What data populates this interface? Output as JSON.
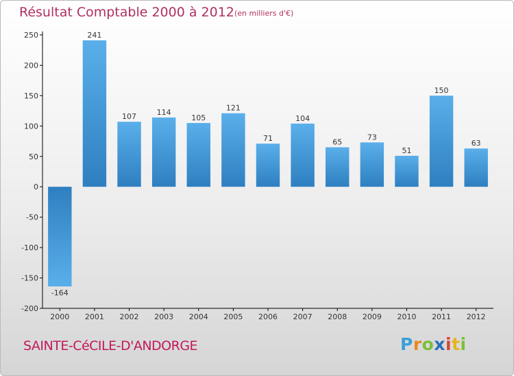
{
  "page": {
    "title": "Résultat Comptable 2000 à 2012",
    "subtitle": "(en milliers d'€)",
    "commune": "SAINTE-CéCILE-D'ANDORGE",
    "logo": {
      "p": "P",
      "r": "r",
      "o": "o",
      "x": "x",
      "i1": "i",
      "t": "t",
      "i2": "i"
    }
  },
  "chart_data": {
    "type": "bar",
    "title": "Résultat Comptable 2000 à 2012",
    "subtitle": "(en milliers d'€)",
    "xlabel": "",
    "ylabel": "",
    "categories": [
      "2000",
      "2001",
      "2002",
      "2003",
      "2004",
      "2005",
      "2006",
      "2007",
      "2008",
      "2009",
      "2010",
      "2011",
      "2012"
    ],
    "values": [
      -164,
      241,
      107,
      114,
      105,
      121,
      71,
      104,
      65,
      73,
      51,
      150,
      63
    ],
    "value_labels": [
      "-164",
      "241",
      "107",
      "114",
      "105",
      "121",
      "71",
      "104",
      "65",
      "73",
      "51",
      "150",
      "63"
    ],
    "ylim": [
      -200,
      250
    ],
    "yticks": [
      250,
      200,
      150,
      100,
      50,
      0,
      -50,
      -100,
      -150,
      -200
    ],
    "ytick_labels": [
      "250",
      "200",
      "150",
      "100",
      "50",
      "0",
      "-50",
      "-100",
      "-150",
      "-200"
    ],
    "grid": false,
    "colors": {
      "bar_light": "#5aafea",
      "bar_dark": "#2e7fc0",
      "axis": "#000000",
      "label": "#333333"
    }
  }
}
